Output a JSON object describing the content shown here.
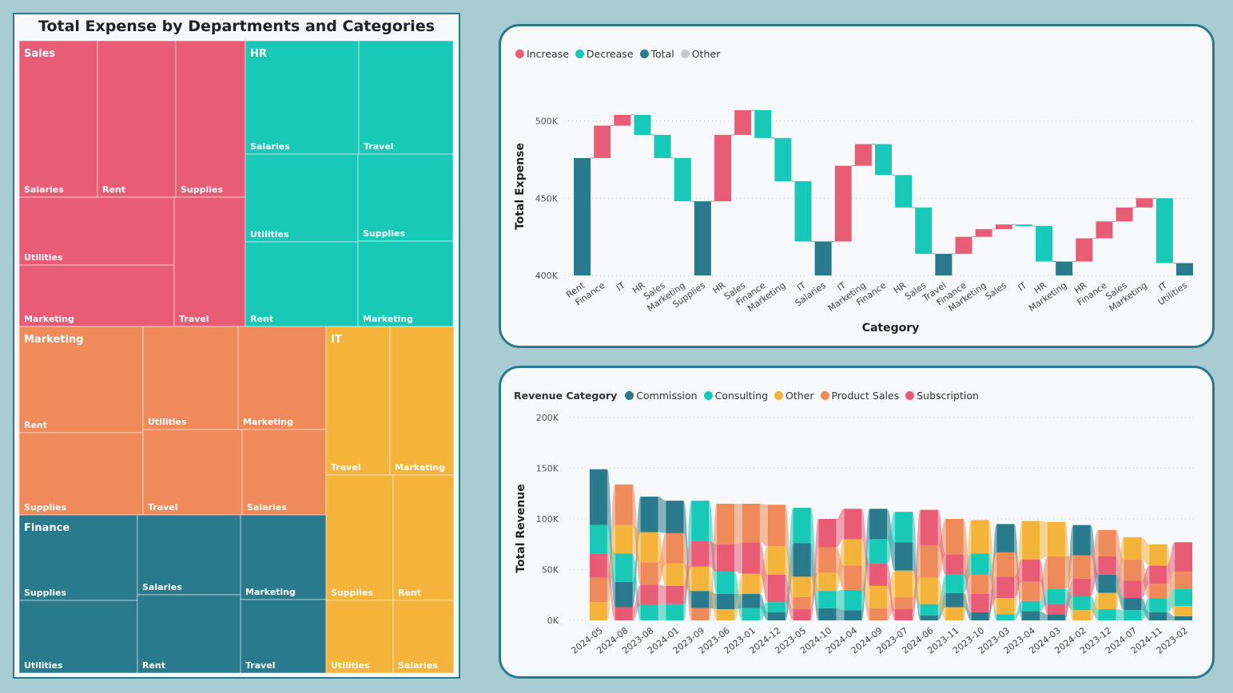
{
  "colors": {
    "sales": "#e85d75",
    "hr": "#17c9b6",
    "marketing": "#ef8a5a",
    "it": "#f4b43c",
    "finance": "#287a8c",
    "increase": "#e85d75",
    "decrease": "#17c9b6",
    "total": "#287a8c",
    "other": "#c8c8c8",
    "commission": "#287a8c",
    "consulting": "#17c9b6",
    "other_rev": "#f4b43c",
    "product_sales": "#ef8a5a",
    "subscription": "#e85d75"
  },
  "treemap": {
    "title": "Total Expense by Departments and Categories",
    "departments": [
      {
        "name": "Sales",
        "color": "sales",
        "categories": [
          "Salaries",
          "Rent",
          "Supplies",
          "Utilities",
          "Marketing",
          "Travel"
        ]
      },
      {
        "name": "HR",
        "color": "hr",
        "categories": [
          "Salaries",
          "Travel",
          "Utilities",
          "Supplies",
          "Rent",
          "Marketing"
        ]
      },
      {
        "name": "Marketing",
        "color": "marketing",
        "categories": [
          "Rent",
          "Utilities",
          "Marketing",
          "Supplies",
          "Travel",
          "Salaries"
        ]
      },
      {
        "name": "IT",
        "color": "it",
        "categories": [
          "Travel",
          "Marketing",
          "Supplies",
          "Rent",
          "Utilities",
          "Salaries"
        ]
      },
      {
        "name": "Finance",
        "color": "finance",
        "categories": [
          "Supplies",
          "Salaries",
          "Marketing",
          "Utilities",
          "Rent",
          "Travel"
        ]
      }
    ]
  },
  "waterfall": {
    "legend": [
      {
        "label": "Increase",
        "color": "increase"
      },
      {
        "label": "Decrease",
        "color": "decrease"
      },
      {
        "label": "Total",
        "color": "total"
      },
      {
        "label": "Other",
        "color": "other"
      }
    ],
    "xlabel": "Category",
    "ylabel": "Total Expense"
  },
  "ribbon": {
    "legend_title": "Revenue Category",
    "legend": [
      {
        "label": "Commission",
        "color": "commission"
      },
      {
        "label": "Consulting",
        "color": "consulting"
      },
      {
        "label": "Other",
        "color": "other_rev"
      },
      {
        "label": "Product Sales",
        "color": "product_sales"
      },
      {
        "label": "Subscription",
        "color": "subscription"
      }
    ],
    "ylabel": "Total Revenue"
  },
  "chart_data": [
    {
      "type": "treemap",
      "title": "Total Expense by Departments and Categories",
      "departments": [
        "Sales",
        "HR",
        "Marketing",
        "IT",
        "Finance"
      ]
    },
    {
      "type": "bar",
      "subtype": "waterfall",
      "xlabel": "Category",
      "ylabel": "Total Expense",
      "ylim": [
        400000,
        510000
      ],
      "yticks": [
        400000,
        450000,
        500000
      ],
      "ytick_labels": [
        "400K",
        "450K",
        "500K"
      ],
      "grid": true,
      "legend_position": "top-left",
      "bars": [
        {
          "label": "Rent",
          "type": "total",
          "start": 400000,
          "end": 476000
        },
        {
          "label": "Finance",
          "type": "increase",
          "start": 476000,
          "end": 497000
        },
        {
          "label": "IT",
          "type": "increase",
          "start": 497000,
          "end": 504000
        },
        {
          "label": "HR",
          "type": "decrease",
          "start": 504000,
          "end": 491000
        },
        {
          "label": "Sales",
          "type": "decrease",
          "start": 491000,
          "end": 476000
        },
        {
          "label": "Marketing",
          "type": "decrease",
          "start": 476000,
          "end": 448000
        },
        {
          "label": "Supplies",
          "type": "total",
          "start": 400000,
          "end": 448000
        },
        {
          "label": "HR",
          "type": "increase",
          "start": 448000,
          "end": 491000
        },
        {
          "label": "Sales",
          "type": "increase",
          "start": 491000,
          "end": 507000
        },
        {
          "label": "Finance",
          "type": "decrease",
          "start": 507000,
          "end": 489000
        },
        {
          "label": "Marketing",
          "type": "decrease",
          "start": 489000,
          "end": 461000
        },
        {
          "label": "IT",
          "type": "decrease",
          "start": 461000,
          "end": 422000
        },
        {
          "label": "Salaries",
          "type": "total",
          "start": 400000,
          "end": 422000
        },
        {
          "label": "IT",
          "type": "increase",
          "start": 422000,
          "end": 471000
        },
        {
          "label": "Marketing",
          "type": "increase",
          "start": 471000,
          "end": 485000
        },
        {
          "label": "Finance",
          "type": "decrease",
          "start": 485000,
          "end": 465000
        },
        {
          "label": "HR",
          "type": "decrease",
          "start": 465000,
          "end": 444000
        },
        {
          "label": "Sales",
          "type": "decrease",
          "start": 444000,
          "end": 414000
        },
        {
          "label": "Travel",
          "type": "total",
          "start": 400000,
          "end": 414000
        },
        {
          "label": "Finance",
          "type": "increase",
          "start": 414000,
          "end": 425000
        },
        {
          "label": "Marketing",
          "type": "increase",
          "start": 425000,
          "end": 430000
        },
        {
          "label": "Sales",
          "type": "increase",
          "start": 430000,
          "end": 433000
        },
        {
          "label": "IT",
          "type": "decrease",
          "start": 433000,
          "end": 432000
        },
        {
          "label": "HR",
          "type": "decrease",
          "start": 432000,
          "end": 409000
        },
        {
          "label": "Marketing",
          "type": "total",
          "start": 400000,
          "end": 409000
        },
        {
          "label": "HR",
          "type": "increase",
          "start": 409000,
          "end": 424000
        },
        {
          "label": "Finance",
          "type": "increase",
          "start": 424000,
          "end": 435000
        },
        {
          "label": "Sales",
          "type": "increase",
          "start": 435000,
          "end": 444000
        },
        {
          "label": "Marketing",
          "type": "increase",
          "start": 444000,
          "end": 450000
        },
        {
          "label": "IT",
          "type": "decrease",
          "start": 450000,
          "end": 408000
        },
        {
          "label": "Utilities",
          "type": "total",
          "start": 400000,
          "end": 408000
        }
      ]
    },
    {
      "type": "area",
      "subtype": "ribbon",
      "ylabel": "Total Revenue",
      "ylim": [
        0,
        200000
      ],
      "yticks": [
        0,
        50000,
        100000,
        150000,
        200000
      ],
      "ytick_labels": [
        "0K",
        "50K",
        "100K",
        "150K",
        "200K"
      ],
      "grid": true,
      "legend_position": "top-left",
      "x": [
        "2024-05",
        "2024-08",
        "2023-08",
        "2024-01",
        "2023-09",
        "2023-06",
        "2023-01",
        "2024-12",
        "2023-05",
        "2024-10",
        "2024-04",
        "2024-09",
        "2023-07",
        "2024-06",
        "2023-11",
        "2023-10",
        "2023-03",
        "2023-04",
        "2024-03",
        "2024-02",
        "2023-12",
        "2024-07",
        "2024-11",
        "2023-02"
      ],
      "series": [
        {
          "name": "Commission",
          "values": [
            55000,
            25000,
            35000,
            32000,
            17000,
            15000,
            14000,
            8000,
            33000,
            12000,
            10000,
            30000,
            28000,
            5000,
            14000,
            8000,
            28000,
            9000,
            6000,
            30000,
            18000,
            12000,
            8000,
            4000
          ]
        },
        {
          "name": "Consulting",
          "values": [
            28000,
            28000,
            15000,
            16000,
            40000,
            22000,
            12000,
            10000,
            35000,
            17000,
            20000,
            24000,
            30000,
            11000,
            18000,
            21000,
            6000,
            10000,
            15000,
            14000,
            11000,
            10000,
            14000,
            17000
          ]
        },
        {
          "name": "Other",
          "values": [
            18000,
            28000,
            30000,
            22000,
            24000,
            11000,
            20000,
            28000,
            20000,
            18000,
            26000,
            22000,
            26000,
            26000,
            13000,
            33000,
            16000,
            38000,
            34000,
            10000,
            16000,
            22000,
            21000,
            10000
          ]
        },
        {
          "name": "Product Sales",
          "values": [
            24000,
            40000,
            22000,
            30000,
            12000,
            40000,
            38000,
            41000,
            12000,
            25000,
            24000,
            12000,
            12000,
            32000,
            35000,
            19000,
            24000,
            19000,
            32000,
            23000,
            26000,
            21000,
            14000,
            17000
          ]
        },
        {
          "name": "Subscription",
          "values": [
            24000,
            13000,
            20000,
            18000,
            25000,
            27000,
            31000,
            27000,
            11000,
            28000,
            30000,
            22000,
            11000,
            35000,
            20000,
            18000,
            21000,
            22000,
            10000,
            17000,
            18000,
            17000,
            18000,
            29000
          ]
        }
      ]
    }
  ]
}
